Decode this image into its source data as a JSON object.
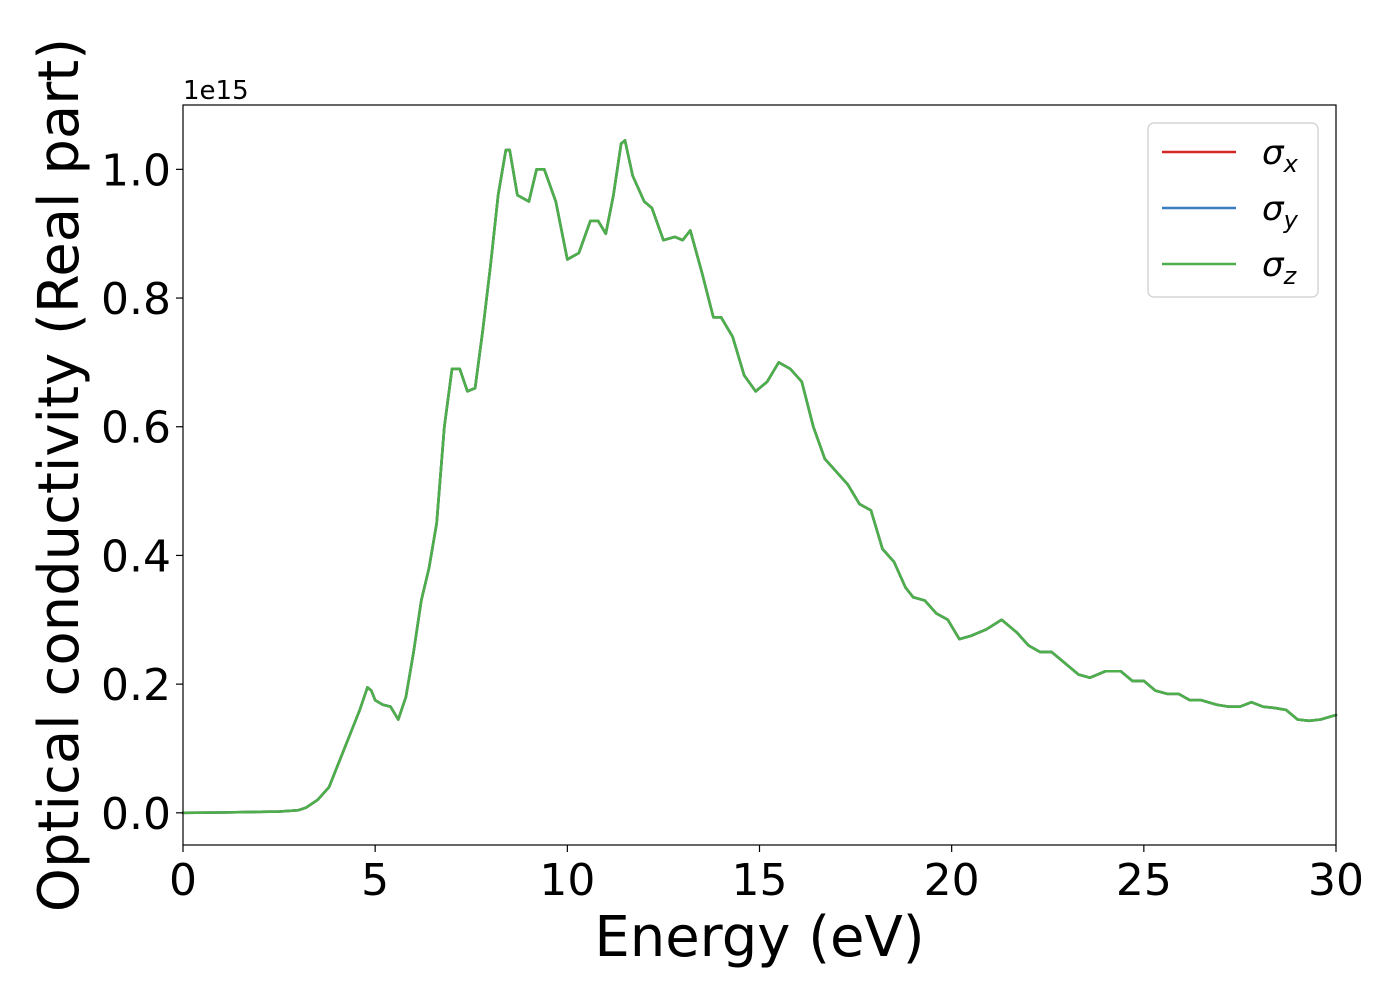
{
  "chart_data": {
    "type": "line",
    "title": "",
    "xlabel": "Energy (eV)",
    "ylabel": "Optical conductivity (Real part)",
    "y_offset_label": "1e15",
    "xlim": [
      0,
      30
    ],
    "ylim": [
      -0.05,
      1.1
    ],
    "x_ticks": [
      0,
      5,
      10,
      15,
      20,
      25,
      30
    ],
    "x_tick_labels": [
      "0",
      "5",
      "10",
      "15",
      "20",
      "25",
      "30"
    ],
    "y_ticks": [
      0.0,
      0.2,
      0.4,
      0.6,
      0.8,
      1.0
    ],
    "y_tick_labels": [
      "0.0",
      "0.2",
      "0.4",
      "0.6",
      "0.8",
      "1.0"
    ],
    "grid": false,
    "legend_position": "top-right",
    "legend": [
      {
        "base": "σ",
        "sub": "x",
        "color": "#d62728"
      },
      {
        "base": "σ",
        "sub": "y",
        "color": "#3a7dbf"
      },
      {
        "base": "σ",
        "sub": "z",
        "color": "#4daf4a"
      }
    ],
    "x": [
      0,
      1,
      2,
      2.5,
      3,
      3.2,
      3.5,
      3.8,
      4.0,
      4.2,
      4.4,
      4.6,
      4.8,
      4.9,
      5.0,
      5.2,
      5.4,
      5.6,
      5.8,
      6.0,
      6.2,
      6.4,
      6.6,
      6.8,
      7.0,
      7.2,
      7.4,
      7.6,
      7.8,
      8.0,
      8.2,
      8.4,
      8.5,
      8.7,
      9.0,
      9.2,
      9.4,
      9.7,
      10.0,
      10.3,
      10.6,
      10.8,
      11.0,
      11.2,
      11.4,
      11.5,
      11.7,
      12.0,
      12.2,
      12.5,
      12.8,
      13.0,
      13.2,
      13.5,
      13.8,
      14.0,
      14.3,
      14.6,
      14.9,
      15.2,
      15.5,
      15.8,
      16.1,
      16.4,
      16.7,
      17.0,
      17.3,
      17.6,
      17.9,
      18.2,
      18.5,
      18.8,
      19.0,
      19.3,
      19.6,
      19.9,
      20.2,
      20.5,
      20.9,
      21.3,
      21.7,
      22.0,
      22.3,
      22.6,
      22.9,
      23.3,
      23.6,
      24.0,
      24.4,
      24.7,
      25.0,
      25.3,
      25.6,
      25.9,
      26.2,
      26.5,
      26.9,
      27.2,
      27.5,
      27.8,
      28.1,
      28.4,
      28.7,
      29.0,
      29.3,
      29.6,
      30.0
    ],
    "series": [
      {
        "name": "σx",
        "color": "#d62728",
        "values": [
          0,
          0.0005,
          0.0015,
          0.002,
          0.004,
          0.008,
          0.02,
          0.04,
          0.07,
          0.1,
          0.13,
          0.16,
          0.195,
          0.19,
          0.175,
          0.168,
          0.165,
          0.145,
          0.18,
          0.25,
          0.33,
          0.38,
          0.45,
          0.6,
          0.69,
          0.69,
          0.655,
          0.66,
          0.75,
          0.85,
          0.96,
          1.03,
          1.03,
          0.96,
          0.95,
          1.0,
          1.0,
          0.95,
          0.86,
          0.87,
          0.92,
          0.92,
          0.9,
          0.96,
          1.04,
          1.045,
          0.99,
          0.95,
          0.94,
          0.89,
          0.895,
          0.89,
          0.905,
          0.84,
          0.77,
          0.77,
          0.74,
          0.68,
          0.655,
          0.67,
          0.7,
          0.69,
          0.67,
          0.6,
          0.55,
          0.53,
          0.51,
          0.48,
          0.47,
          0.41,
          0.39,
          0.35,
          0.335,
          0.33,
          0.31,
          0.3,
          0.27,
          0.275,
          0.285,
          0.3,
          0.28,
          0.26,
          0.25,
          0.25,
          0.235,
          0.215,
          0.21,
          0.22,
          0.22,
          0.205,
          0.205,
          0.19,
          0.185,
          0.185,
          0.175,
          0.175,
          0.168,
          0.165,
          0.165,
          0.172,
          0.165,
          0.163,
          0.16,
          0.145,
          0.143,
          0.145,
          0.152
        ]
      },
      {
        "name": "σy",
        "color": "#3a7dbf",
        "values": [
          0,
          0.0005,
          0.0015,
          0.002,
          0.004,
          0.008,
          0.02,
          0.04,
          0.07,
          0.1,
          0.13,
          0.16,
          0.195,
          0.19,
          0.175,
          0.168,
          0.165,
          0.145,
          0.18,
          0.25,
          0.33,
          0.38,
          0.45,
          0.6,
          0.69,
          0.69,
          0.655,
          0.66,
          0.75,
          0.85,
          0.96,
          1.03,
          1.03,
          0.96,
          0.95,
          1.0,
          1.0,
          0.95,
          0.86,
          0.87,
          0.92,
          0.92,
          0.9,
          0.96,
          1.04,
          1.045,
          0.99,
          0.95,
          0.94,
          0.89,
          0.895,
          0.89,
          0.905,
          0.84,
          0.77,
          0.77,
          0.74,
          0.68,
          0.655,
          0.67,
          0.7,
          0.69,
          0.67,
          0.6,
          0.55,
          0.53,
          0.51,
          0.48,
          0.47,
          0.41,
          0.39,
          0.35,
          0.335,
          0.33,
          0.31,
          0.3,
          0.27,
          0.275,
          0.285,
          0.3,
          0.28,
          0.26,
          0.25,
          0.25,
          0.235,
          0.215,
          0.21,
          0.22,
          0.22,
          0.205,
          0.205,
          0.19,
          0.185,
          0.185,
          0.175,
          0.175,
          0.168,
          0.165,
          0.165,
          0.172,
          0.165,
          0.163,
          0.16,
          0.145,
          0.143,
          0.145,
          0.152
        ]
      },
      {
        "name": "σz",
        "color": "#4daf4a",
        "values": [
          0,
          0.0005,
          0.0015,
          0.002,
          0.004,
          0.008,
          0.02,
          0.04,
          0.07,
          0.1,
          0.13,
          0.16,
          0.195,
          0.19,
          0.175,
          0.168,
          0.165,
          0.145,
          0.18,
          0.25,
          0.33,
          0.38,
          0.45,
          0.6,
          0.69,
          0.69,
          0.655,
          0.66,
          0.75,
          0.85,
          0.96,
          1.03,
          1.03,
          0.96,
          0.95,
          1.0,
          1.0,
          0.95,
          0.86,
          0.87,
          0.92,
          0.92,
          0.9,
          0.96,
          1.04,
          1.045,
          0.99,
          0.95,
          0.94,
          0.89,
          0.895,
          0.89,
          0.905,
          0.84,
          0.77,
          0.77,
          0.74,
          0.68,
          0.655,
          0.67,
          0.7,
          0.69,
          0.67,
          0.6,
          0.55,
          0.53,
          0.51,
          0.48,
          0.47,
          0.41,
          0.39,
          0.35,
          0.335,
          0.33,
          0.31,
          0.3,
          0.27,
          0.275,
          0.285,
          0.3,
          0.28,
          0.26,
          0.25,
          0.25,
          0.235,
          0.215,
          0.21,
          0.22,
          0.22,
          0.205,
          0.205,
          0.19,
          0.185,
          0.185,
          0.175,
          0.175,
          0.168,
          0.165,
          0.165,
          0.172,
          0.165,
          0.163,
          0.16,
          0.145,
          0.143,
          0.145,
          0.152
        ]
      }
    ]
  }
}
